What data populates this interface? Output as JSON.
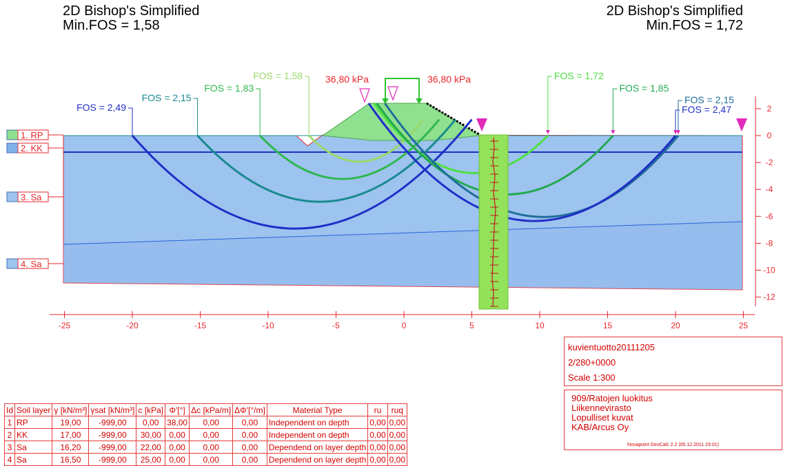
{
  "header": {
    "left": {
      "method": "2D Bishop's Simplified",
      "min_fos": "Min.FOS = 1,58"
    },
    "right": {
      "method": "2D Bishop's Simplified",
      "min_fos": "Min.FOS = 1,72"
    }
  },
  "colors": {
    "section_line": "#e8262b",
    "soil_fill": "#9dc3ef",
    "embankment_fill": "#8fe08f",
    "pile_fill": "#93e25a",
    "water_line": "#1f2fbf",
    "load_marker": "#e02ab8"
  },
  "loads": {
    "left": "36,80 kPa",
    "right": "36,80 kPa"
  },
  "layer_labels": [
    "1. RP",
    "2. KK",
    "3. Sa",
    "4. Sa"
  ],
  "x_axis": {
    "range": [
      -25,
      25
    ],
    "ticks": [
      "-25",
      "-20",
      "-15",
      "-10",
      "-5",
      "0",
      "5",
      "10",
      "15",
      "20",
      "25"
    ]
  },
  "y_axis": {
    "range": [
      -12,
      2
    ],
    "ticks": [
      "2",
      "0",
      "-2",
      "-4",
      "-6",
      "-8",
      "-10",
      "-12"
    ]
  },
  "slip_surfaces": [
    {
      "label": "FOS = 2,49",
      "side": "left",
      "entry": -20.0,
      "exit": 5.0,
      "depth": -7.2,
      "color": "#1f2fc8"
    },
    {
      "label": "FOS = 2,15",
      "side": "left",
      "entry": -15.2,
      "exit": 3.8,
      "depth": -5.2,
      "color": "#198a8f"
    },
    {
      "label": "FOS = 1,83",
      "side": "left",
      "entry": -10.6,
      "exit": 2.6,
      "depth": -3.5,
      "color": "#2fb84d"
    },
    {
      "label": "FOS = 1,58",
      "side": "left",
      "entry": -7.0,
      "exit": 1.4,
      "depth": -2.2,
      "color": "#9bd86a"
    },
    {
      "label": "FOS = 1,72",
      "side": "right",
      "entry": -2.2,
      "exit": 10.6,
      "depth": -3.3,
      "color": "#4ee040"
    },
    {
      "label": "FOS = 1,85",
      "side": "right",
      "entry": -2.0,
      "exit": 15.4,
      "depth": -4.9,
      "color": "#23a850"
    },
    {
      "label": "FOS = 2,15",
      "side": "right",
      "entry": -1.4,
      "exit": 20.2,
      "depth": -6.6,
      "color": "#1f6e9a"
    },
    {
      "label": "FOS = 2,47",
      "side": "right",
      "entry": -2.6,
      "exit": 20.0,
      "depth": -6.9,
      "color": "#1f2fc8"
    }
  ],
  "info1": {
    "project": "kuvientuotto20111205",
    "station": "2/280+0000",
    "scale": "Scale  1:300"
  },
  "info2": {
    "lines": [
      "909/Ratojen luokitus",
      "Liikennevirasto",
      "Lopulliset kuvat",
      "KAB/Arcus Oy"
    ],
    "software": "Novapoint GeoCalc 2.2  (05.12.2011 23:01)"
  },
  "table": {
    "headers": [
      "Id",
      "Soil layer",
      "γ [kN/m³]",
      "γsat [kN/m³]",
      "c [kPa]",
      "Φ'[°]",
      "Δc [kPa/m]",
      "ΔΦ'[°/m]",
      "Material Type",
      "ru",
      "ruq"
    ],
    "rows": [
      [
        "1",
        "RP",
        "19,00",
        "-999,00",
        "0,00",
        "38,00",
        "0,00",
        "0,00",
        "Independent on depth",
        "0,00",
        "0,00"
      ],
      [
        "2",
        "KK",
        "17,00",
        "-999,00",
        "30,00",
        "0,00",
        "0,00",
        "0,00",
        "Independent on depth",
        "0,00",
        "0,00"
      ],
      [
        "3",
        "Sa",
        "16,20",
        "-999,00",
        "22,00",
        "0,00",
        "0,00",
        "0,00",
        "Dependend on layer depth",
        "0,00",
        "0,00"
      ],
      [
        "4",
        "Sa",
        "16,50",
        "-999,00",
        "25,00",
        "0,00",
        "0,00",
        "0,00",
        "Dependend on layer depth",
        "0,00",
        "0,00"
      ]
    ]
  }
}
